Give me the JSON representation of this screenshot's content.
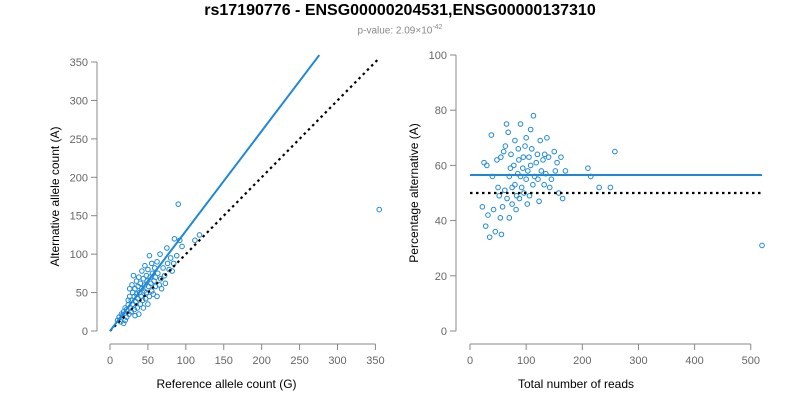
{
  "header": {
    "title": "rs17190776 - ENSG00000204531,ENSG00000137310",
    "subtitle_prefix": "p-value: 2.09×10",
    "subtitle_exp": "-42"
  },
  "colors": {
    "points": "#1e88d6",
    "fit": "#1e88d6",
    "reference": "#000000",
    "axis": "#888888"
  },
  "chart_data": [
    {
      "type": "scatter",
      "title": "",
      "xlabel": "Reference allele count (G)",
      "ylabel": "Alternative allele count (A)",
      "xlim": [
        0,
        360
      ],
      "ylim": [
        0,
        350
      ],
      "xticks": [
        0,
        50,
        100,
        150,
        200,
        250,
        300,
        350
      ],
      "yticks": [
        0,
        50,
        100,
        150,
        200,
        250,
        300,
        350
      ],
      "fit_line": {
        "x": [
          0,
          276
        ],
        "y": [
          0,
          359
        ]
      },
      "reference_line": {
        "x": [
          0,
          355
        ],
        "y": [
          0,
          355
        ],
        "style": "dotted"
      },
      "points": [
        [
          10,
          14
        ],
        [
          12,
          18
        ],
        [
          14,
          12
        ],
        [
          15,
          22
        ],
        [
          16,
          20
        ],
        [
          18,
          25
        ],
        [
          18,
          10
        ],
        [
          20,
          30
        ],
        [
          20,
          14
        ],
        [
          22,
          28
        ],
        [
          22,
          18
        ],
        [
          24,
          34
        ],
        [
          24,
          40
        ],
        [
          25,
          22
        ],
        [
          26,
          45
        ],
        [
          26,
          55
        ],
        [
          27,
          30
        ],
        [
          28,
          40
        ],
        [
          28,
          25
        ],
        [
          29,
          60
        ],
        [
          30,
          35
        ],
        [
          30,
          50
        ],
        [
          31,
          72
        ],
        [
          32,
          28
        ],
        [
          32,
          45
        ],
        [
          33,
          55
        ],
        [
          33,
          20
        ],
        [
          34,
          38
        ],
        [
          35,
          65
        ],
        [
          35,
          48
        ],
        [
          36,
          30
        ],
        [
          37,
          58
        ],
        [
          37,
          42
        ],
        [
          38,
          70
        ],
        [
          38,
          22
        ],
        [
          39,
          50
        ],
        [
          40,
          35
        ],
        [
          40,
          62
        ],
        [
          41,
          45
        ],
        [
          42,
          78
        ],
        [
          42,
          55
        ],
        [
          43,
          40
        ],
        [
          44,
          68
        ],
        [
          44,
          30
        ],
        [
          45,
          52
        ],
        [
          46,
          85
        ],
        [
          46,
          60
        ],
        [
          47,
          42
        ],
        [
          48,
          72
        ],
        [
          48,
          50
        ],
        [
          49,
          65
        ],
        [
          50,
          35
        ],
        [
          50,
          80
        ],
        [
          51,
          58
        ],
        [
          52,
          45
        ],
        [
          52,
          98
        ],
        [
          53,
          70
        ],
        [
          54,
          62
        ],
        [
          55,
          52
        ],
        [
          55,
          88
        ],
        [
          56,
          75
        ],
        [
          57,
          48
        ],
        [
          58,
          65
        ],
        [
          59,
          82
        ],
        [
          60,
          58
        ],
        [
          60,
          70
        ],
        [
          62,
          45
        ],
        [
          62,
          90
        ],
        [
          63,
          75
        ],
        [
          65,
          60
        ],
        [
          66,
          100
        ],
        [
          67,
          68
        ],
        [
          68,
          55
        ],
        [
          70,
          82
        ],
        [
          72,
          72
        ],
        [
          73,
          62
        ],
        [
          75,
          108
        ],
        [
          76,
          88
        ],
        [
          78,
          80
        ],
        [
          80,
          95
        ],
        [
          82,
          78
        ],
        [
          84,
          88
        ],
        [
          85,
          120
        ],
        [
          88,
          98
        ],
        [
          90,
          165
        ],
        [
          92,
          118
        ],
        [
          95,
          110
        ],
        [
          112,
          118
        ],
        [
          118,
          125
        ],
        [
          355,
          158
        ]
      ]
    },
    {
      "type": "scatter",
      "title": "",
      "xlabel": "Total number of reads",
      "ylabel": "Percentage alternative (A)",
      "xlim": [
        0,
        520
      ],
      "ylim": [
        0,
        100
      ],
      "xticks": [
        0,
        100,
        200,
        300,
        400,
        500
      ],
      "yticks": [
        0,
        20,
        40,
        60,
        80,
        100
      ],
      "fit_line": {
        "x": [
          0,
          520
        ],
        "y": [
          56.5,
          56.5
        ]
      },
      "reference_line": {
        "x": [
          0,
          520
        ],
        "y": [
          50,
          50
        ],
        "style": "dotted"
      },
      "points": [
        [
          22,
          45
        ],
        [
          25,
          61
        ],
        [
          28,
          38
        ],
        [
          30,
          60
        ],
        [
          32,
          42
        ],
        [
          35,
          34
        ],
        [
          38,
          71
        ],
        [
          40,
          56
        ],
        [
          42,
          44
        ],
        [
          45,
          36
        ],
        [
          48,
          62
        ],
        [
          50,
          52
        ],
        [
          52,
          49
        ],
        [
          54,
          41
        ],
        [
          55,
          63
        ],
        [
          56,
          35
        ],
        [
          58,
          45
        ],
        [
          60,
          65
        ],
        [
          62,
          51
        ],
        [
          63,
          67
        ],
        [
          65,
          75
        ],
        [
          66,
          48
        ],
        [
          68,
          72
        ],
        [
          70,
          56
        ],
        [
          70,
          41
        ],
        [
          72,
          59
        ],
        [
          73,
          64
        ],
        [
          75,
          52
        ],
        [
          75,
          46
        ],
        [
          78,
          60
        ],
        [
          80,
          69
        ],
        [
          80,
          53
        ],
        [
          82,
          44
        ],
        [
          83,
          49
        ],
        [
          85,
          57
        ],
        [
          86,
          66
        ],
        [
          87,
          62
        ],
        [
          88,
          48
        ],
        [
          90,
          75
        ],
        [
          90,
          56
        ],
        [
          92,
          52
        ],
        [
          94,
          59
        ],
        [
          95,
          63
        ],
        [
          96,
          50
        ],
        [
          98,
          67
        ],
        [
          100,
          55
        ],
        [
          100,
          70
        ],
        [
          102,
          46
        ],
        [
          103,
          58
        ],
        [
          105,
          63
        ],
        [
          106,
          49
        ],
        [
          108,
          73
        ],
        [
          108,
          60
        ],
        [
          110,
          66
        ],
        [
          112,
          53
        ],
        [
          113,
          78
        ],
        [
          115,
          56
        ],
        [
          118,
          61
        ],
        [
          120,
          64
        ],
        [
          121,
          55
        ],
        [
          123,
          47
        ],
        [
          125,
          69
        ],
        [
          127,
          58
        ],
        [
          130,
          62
        ],
        [
          132,
          53
        ],
        [
          133,
          64
        ],
        [
          135,
          57
        ],
        [
          137,
          70
        ],
        [
          140,
          63
        ],
        [
          142,
          52
        ],
        [
          145,
          55
        ],
        [
          150,
          65
        ],
        [
          152,
          58
        ],
        [
          155,
          61
        ],
        [
          158,
          50
        ],
        [
          162,
          63
        ],
        [
          165,
          48
        ],
        [
          170,
          58
        ],
        [
          210,
          59
        ],
        [
          215,
          56
        ],
        [
          230,
          52
        ],
        [
          250,
          52
        ],
        [
          258,
          65
        ],
        [
          520,
          31
        ]
      ]
    }
  ]
}
